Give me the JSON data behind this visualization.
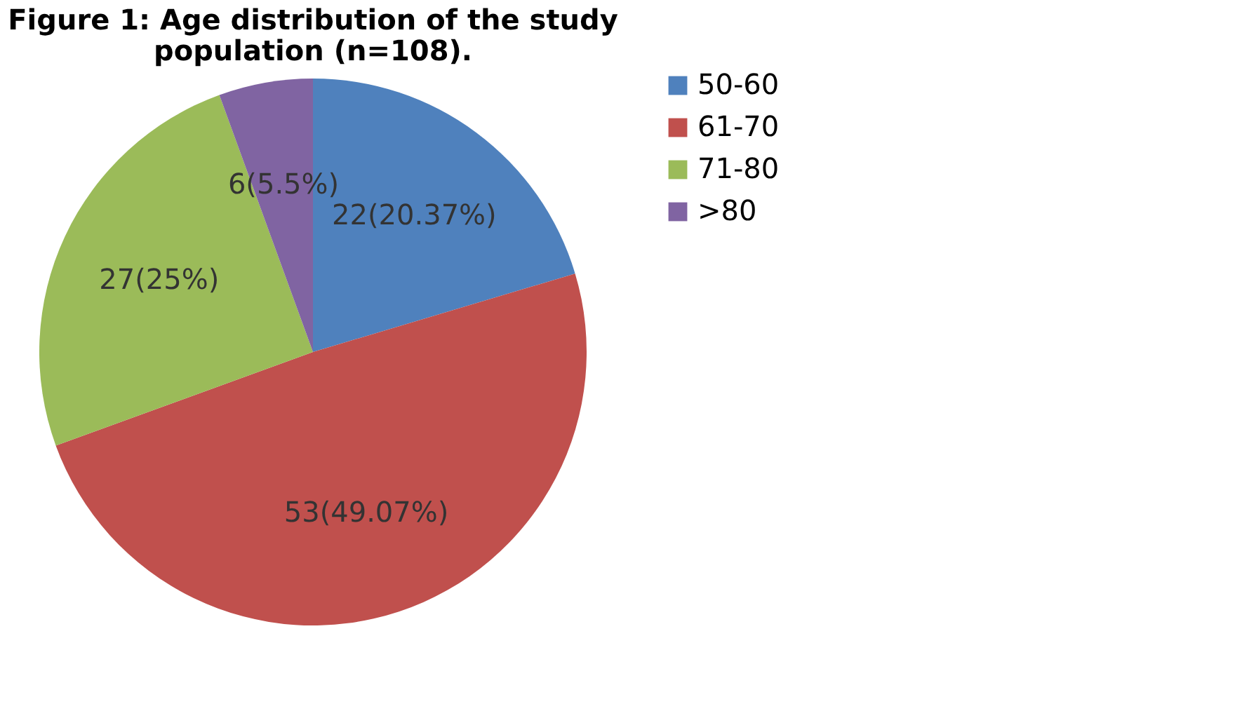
{
  "chart_data": {
    "type": "pie",
    "title": "Figure 1: Age distribution of the study population (n=108).",
    "categories": [
      "50-60",
      "61-70",
      "71-80",
      ">80"
    ],
    "values": [
      22,
      53,
      27,
      6
    ],
    "value_labels": [
      "22(20.37%)",
      "53(49.07%)",
      "27(25%)",
      "6(5.5%)"
    ],
    "colors": [
      "#4f81bd",
      "#c0504d",
      "#9bbb59",
      "#8064a2"
    ],
    "legend": "right"
  }
}
